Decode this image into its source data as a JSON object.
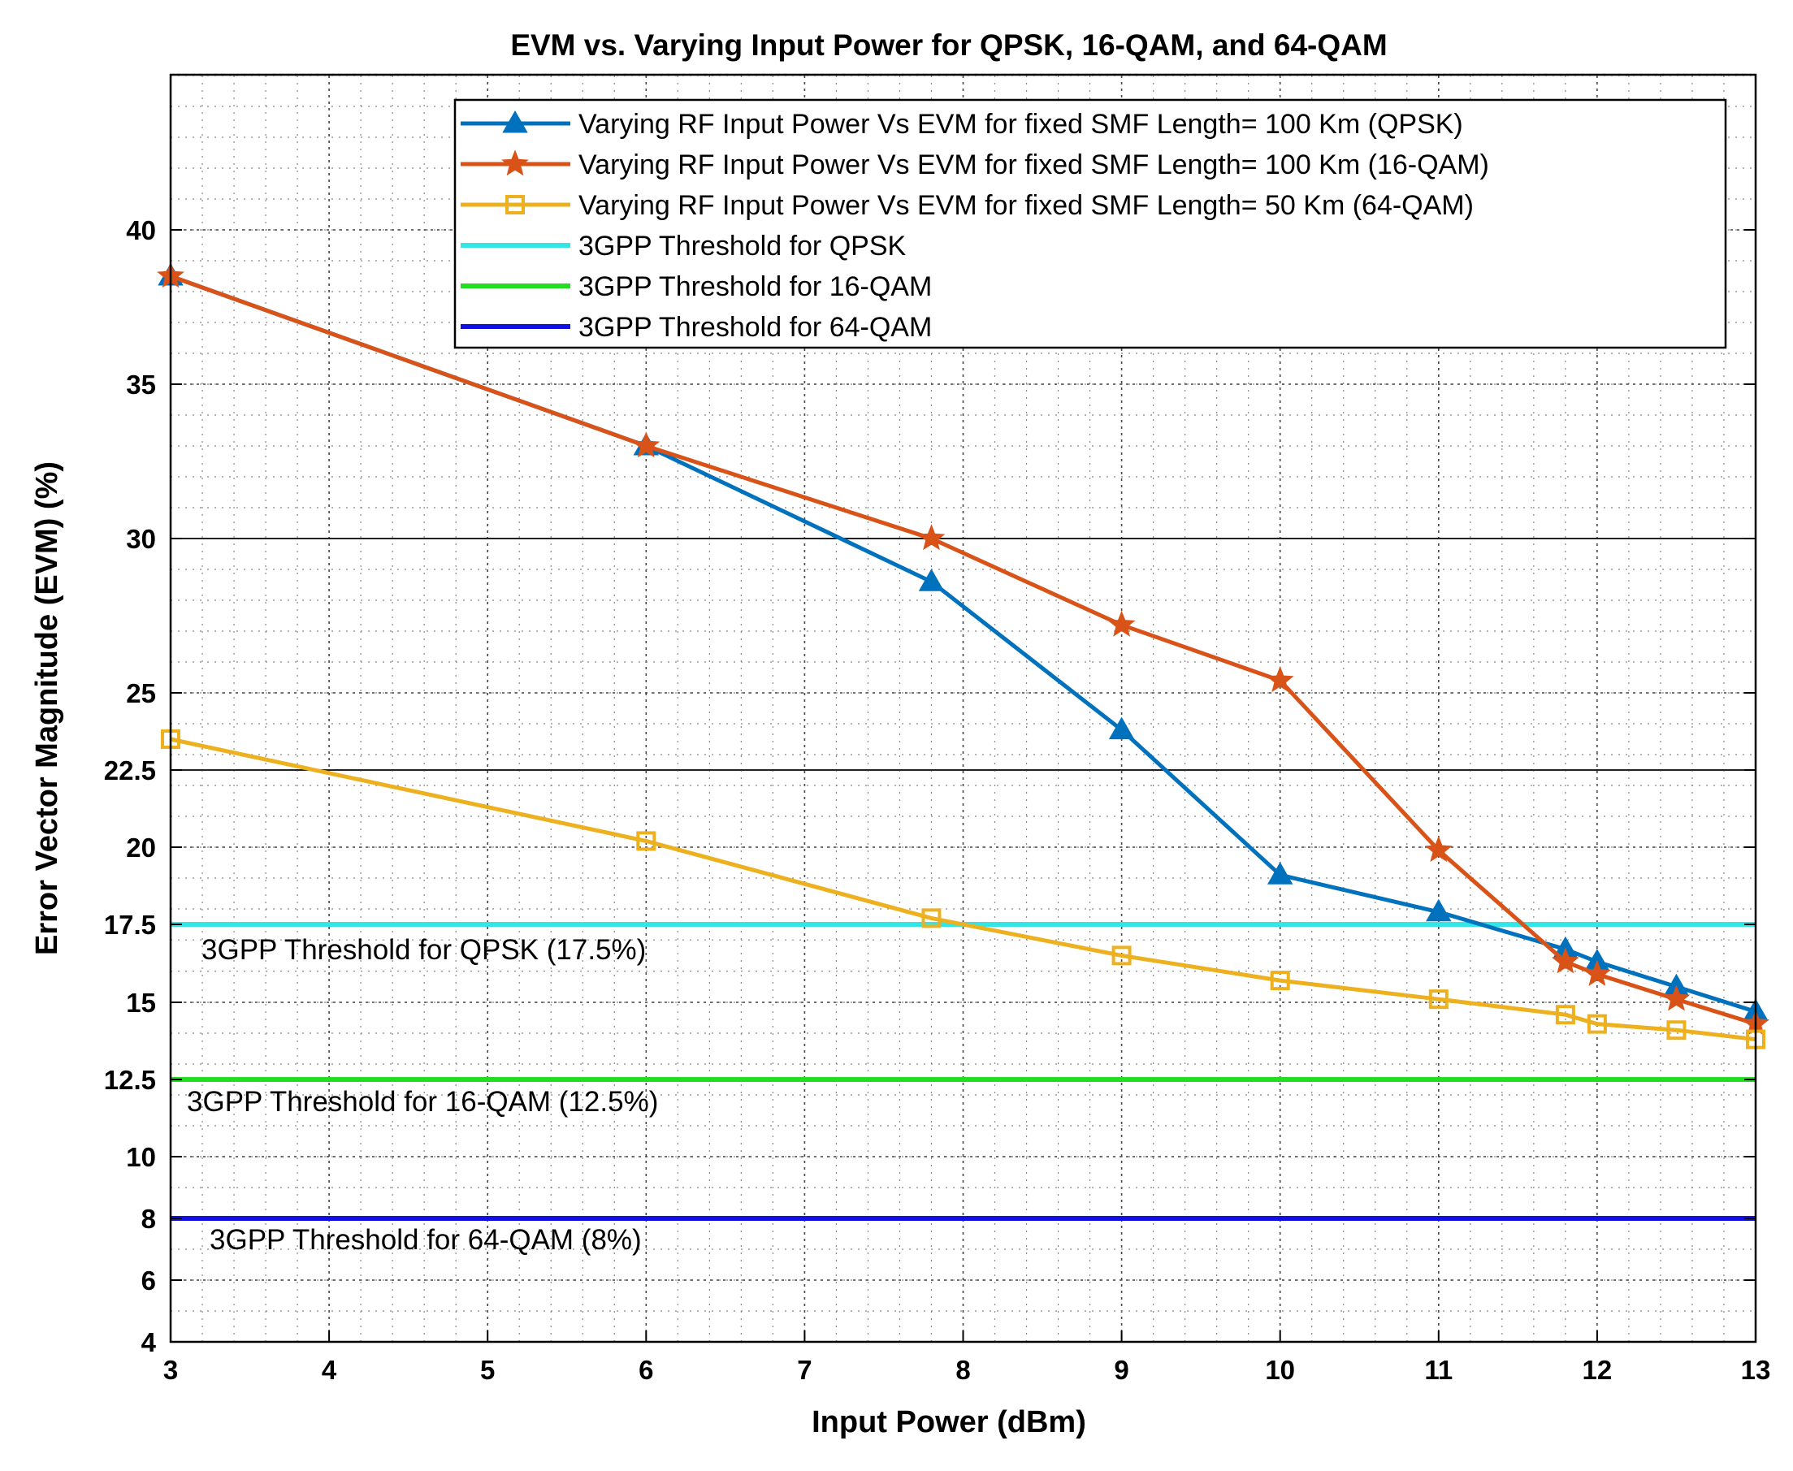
{
  "chart_data": {
    "type": "line",
    "title": "EVM vs. Varying Input Power for QPSK, 16-QAM, and 64-QAM",
    "xlabel": "Input Power (dBm)",
    "ylabel": "Error Vector Magnitude (EVM) (%)",
    "xlim": [
      3,
      13
    ],
    "ylim": [
      4,
      45
    ],
    "x_ticks": [
      3,
      4,
      5,
      6,
      7,
      8,
      9,
      10,
      11,
      12,
      13
    ],
    "y_ticks": [
      4,
      6,
      8,
      10,
      12.5,
      15,
      17.5,
      20,
      22.5,
      25,
      30,
      35,
      40
    ],
    "y_tick_labels": [
      "4",
      "6",
      "8",
      "10",
      "12.5",
      "15",
      "17.5",
      "20",
      "22.5",
      "25",
      "30",
      "35",
      "40"
    ],
    "grid": true,
    "legend_position": "top-right",
    "series": [
      {
        "name": "Varying RF Input Power Vs EVM for fixed SMF Length= 100 Km (QPSK)",
        "marker": "triangle",
        "color": "#0072BD",
        "x": [
          3,
          6,
          7.8,
          9,
          10,
          11,
          11.8,
          12,
          12.5,
          13
        ],
        "y": [
          38.5,
          33.0,
          28.6,
          23.8,
          19.1,
          17.9,
          16.7,
          16.3,
          15.5,
          14.7
        ]
      },
      {
        "name": "Varying RF Input Power Vs EVM for fixed SMF Length= 100 Km (16-QAM)",
        "marker": "star",
        "color": "#D95319",
        "x": [
          3,
          6,
          7.8,
          9,
          10,
          11,
          11.8,
          12,
          12.5,
          13
        ],
        "y": [
          38.5,
          33.0,
          30.0,
          27.2,
          25.4,
          19.9,
          16.3,
          15.9,
          15.1,
          14.3
        ]
      },
      {
        "name": "Varying RF Input Power Vs EVM for fixed SMF Length= 50 Km (64-QAM)",
        "marker": "square",
        "color": "#EDB120",
        "x": [
          3,
          6,
          7.8,
          9,
          10,
          11,
          11.8,
          12,
          12.5,
          13
        ],
        "y": [
          23.5,
          20.2,
          17.7,
          16.5,
          15.7,
          15.1,
          14.6,
          14.3,
          14.1,
          13.8
        ]
      }
    ],
    "thresholds": [
      {
        "name": "3GPP Threshold for QPSK",
        "value": 17.5,
        "color": "#33E6E6",
        "label": "3GPP Threshold for QPSK (17.5%)"
      },
      {
        "name": "3GPP Threshold for 16-QAM",
        "value": 12.5,
        "color": "#22DD22",
        "label": "3GPP Threshold for 16-QAM (12.5%)"
      },
      {
        "name": "3GPP Threshold for 64-QAM",
        "value": 8,
        "color": "#1010E0",
        "label": "3GPP Threshold for 64-QAM (8%)"
      }
    ]
  }
}
